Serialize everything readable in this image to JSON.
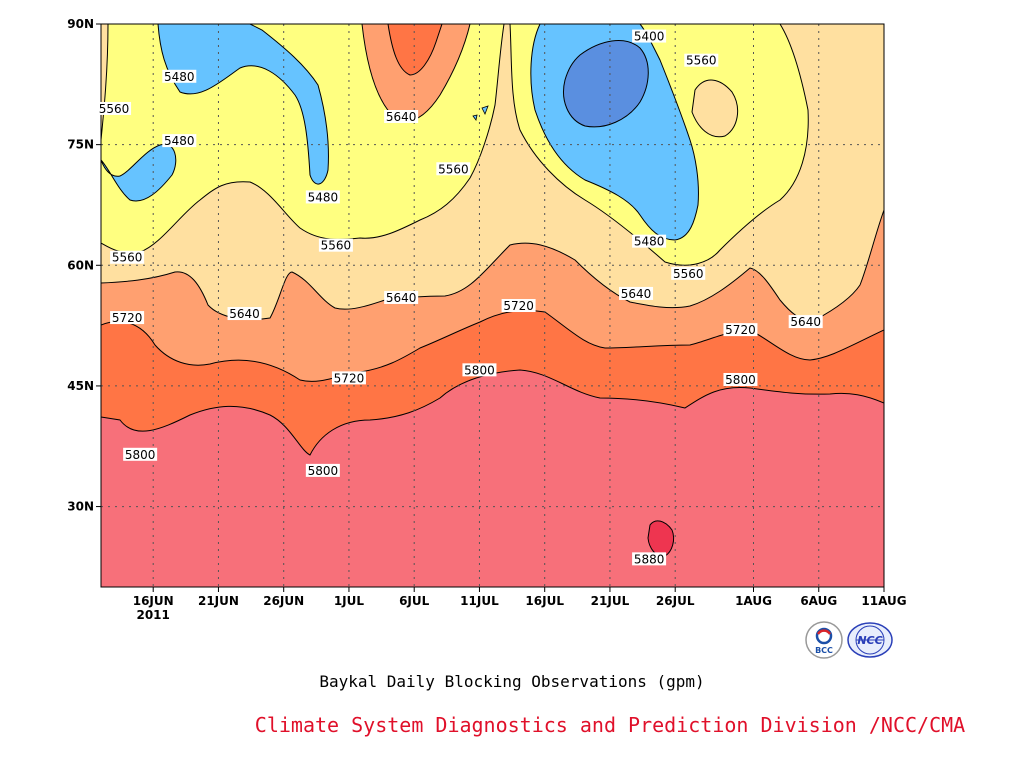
{
  "chart_data": {
    "type": "contour",
    "caption": "Baykal Daily Blocking Observations (gpm)",
    "x_tick_labels": [
      "16JUN",
      "21JUN",
      "26JUN",
      "1JUL",
      "6JUL",
      "11JUL",
      "16JUL",
      "21JUL",
      "26JUL",
      "1AUG",
      "6AUG",
      "11AUG"
    ],
    "x_year_label": "2011",
    "y_tick_labels": [
      "90N",
      "75N",
      "60N",
      "45N",
      "30N"
    ],
    "ylim": [
      20,
      90
    ],
    "grid": true,
    "contour_levels": [
      5400,
      5480,
      5560,
      5640,
      5720,
      5800,
      5880
    ],
    "fill_colors": [
      "#5a8fe0",
      "#66c3ff",
      "#ffff80",
      "#ffe0a0",
      "#ffa070",
      "#ff7545",
      "#f7707a",
      "#ee3550"
    ],
    "contour_labels": [
      {
        "date": "2011-07-24",
        "lat": 88.5,
        "value": 5400
      },
      {
        "date": "2011-07-28",
        "lat": 85.5,
        "value": 5560
      },
      {
        "date": "2011-06-18",
        "lat": 83.5,
        "value": 5480
      },
      {
        "date": "2011-06-13",
        "lat": 79.5,
        "value": 5560
      },
      {
        "date": "2011-07-05",
        "lat": 78.5,
        "value": 5640
      },
      {
        "date": "2011-06-18",
        "lat": 75.5,
        "value": 5480
      },
      {
        "date": "2011-07-09",
        "lat": 72.0,
        "value": 5560
      },
      {
        "date": "2011-06-29",
        "lat": 68.5,
        "value": 5480
      },
      {
        "date": "2011-07-24",
        "lat": 63.0,
        "value": 5480
      },
      {
        "date": "2011-06-30",
        "lat": 62.5,
        "value": 5560
      },
      {
        "date": "2011-06-14",
        "lat": 61.0,
        "value": 5560
      },
      {
        "date": "2011-07-27",
        "lat": 59.0,
        "value": 5560
      },
      {
        "date": "2011-07-23",
        "lat": 56.5,
        "value": 5640
      },
      {
        "date": "2011-07-05",
        "lat": 56.0,
        "value": 5640
      },
      {
        "date": "2011-06-23",
        "lat": 54.0,
        "value": 5640
      },
      {
        "date": "2011-07-14",
        "lat": 55.0,
        "value": 5720
      },
      {
        "date": "2011-06-14",
        "lat": 53.5,
        "value": 5720
      },
      {
        "date": "2011-08-05",
        "lat": 53.0,
        "value": 5640
      },
      {
        "date": "2011-07-31",
        "lat": 52.0,
        "value": 5720
      },
      {
        "date": "2011-07-11",
        "lat": 47.0,
        "value": 5800
      },
      {
        "date": "2011-07-01",
        "lat": 46.0,
        "value": 5720
      },
      {
        "date": "2011-07-31",
        "lat": 45.8,
        "value": 5800
      },
      {
        "date": "2011-06-15",
        "lat": 36.5,
        "value": 5800
      },
      {
        "date": "2011-06-29",
        "lat": 34.5,
        "value": 5800
      },
      {
        "date": "2011-07-24",
        "lat": 23.5,
        "value": 5880
      }
    ]
  },
  "credit": "Climate System Diagnostics and Prediction Division /NCC/CMA",
  "logos": [
    {
      "icon": "bcc-logo-icon",
      "text": "BCC"
    },
    {
      "icon": "ncc-logo-icon",
      "text": "NCC"
    }
  ]
}
